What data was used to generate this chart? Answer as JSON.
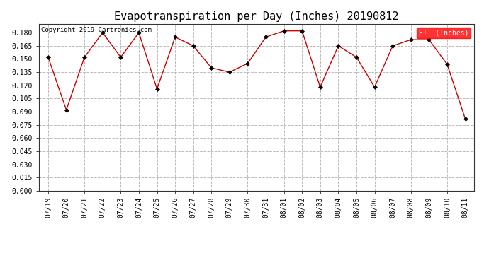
{
  "title": "Evapotranspiration per Day (Inches) 20190812",
  "copyright_text": "Copyright 2019 Cartronics.com",
  "legend_label": "ET  (Inches)",
  "legend_bg": "#ff0000",
  "legend_text_color": "#ffffff",
  "x_labels": [
    "07/19",
    "07/20",
    "07/21",
    "07/22",
    "07/23",
    "07/24",
    "07/25",
    "07/26",
    "07/27",
    "07/28",
    "07/29",
    "07/30",
    "07/31",
    "08/01",
    "08/02",
    "08/03",
    "08/04",
    "08/05",
    "08/06",
    "08/07",
    "08/08",
    "08/09",
    "08/10",
    "08/11"
  ],
  "y_values": [
    0.152,
    0.092,
    0.152,
    0.18,
    0.152,
    0.18,
    0.116,
    0.175,
    0.165,
    0.14,
    0.135,
    0.145,
    0.175,
    0.182,
    0.182,
    0.118,
    0.165,
    0.152,
    0.118,
    0.165,
    0.172,
    0.172,
    0.144,
    0.082
  ],
  "line_color": "#cc0000",
  "marker": "D",
  "marker_size": 3,
  "marker_color": "#000000",
  "ylim": [
    0.0,
    0.19
  ],
  "yticks": [
    0.0,
    0.015,
    0.03,
    0.045,
    0.06,
    0.075,
    0.09,
    0.105,
    0.12,
    0.135,
    0.15,
    0.165,
    0.18
  ],
  "grid_color": "#bbbbbb",
  "grid_style": "--",
  "bg_color": "#ffffff",
  "plot_bg_color": "#ffffff",
  "title_fontsize": 11,
  "tick_fontsize": 7,
  "copyright_fontsize": 6.5
}
